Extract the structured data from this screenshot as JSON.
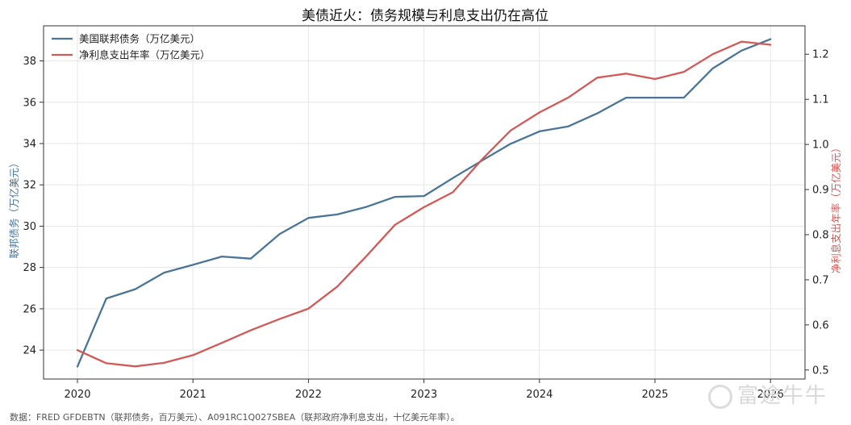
{
  "chart_data": {
    "type": "line",
    "title": "美债近火：债务规模与利息支出仍在高位",
    "x_ticks": [
      "2020",
      "2021",
      "2022",
      "2023",
      "2024",
      "2025",
      "2026"
    ],
    "y_left": {
      "label": "联邦债务（万亿美元）",
      "lim": [
        22.6,
        39.7
      ],
      "ticks": [
        24,
        26,
        28,
        30,
        32,
        34,
        36,
        38
      ]
    },
    "y_right": {
      "label": "净利息支出年率（万亿美元）",
      "lim": [
        0.48,
        1.263
      ],
      "ticks": [
        "0.5",
        "0.6",
        "0.7",
        "0.8",
        "0.9",
        "1.0",
        "1.1",
        "1.2"
      ]
    },
    "grid": true,
    "legend_position": "top-left",
    "series": [
      {
        "name": "美国联邦债务（万亿美元）",
        "axis": "left",
        "color": "#4a7596",
        "x": [
          "2020-01-01",
          "2020-04-01",
          "2020-07-01",
          "2020-10-01",
          "2021-01-01",
          "2021-04-01",
          "2021-07-01",
          "2021-10-01",
          "2022-01-01",
          "2022-04-01",
          "2022-07-01",
          "2022-10-01",
          "2023-01-01",
          "2023-04-01",
          "2023-07-01",
          "2023-10-01",
          "2024-01-01",
          "2024-04-01",
          "2024-07-01",
          "2024-10-01",
          "2025-01-01",
          "2025-04-01",
          "2025-07-01",
          "2025-10-01",
          "2026-01-01"
        ],
        "y": [
          23.2,
          26.5,
          26.95,
          27.75,
          28.13,
          28.53,
          28.43,
          29.62,
          30.4,
          30.57,
          30.93,
          31.42,
          31.46,
          32.33,
          33.17,
          33.99,
          34.59,
          34.83,
          35.46,
          36.22,
          36.22,
          36.22,
          37.64,
          38.5,
          39.05
        ]
      },
      {
        "name": "净利息支出年率（万亿美元）",
        "axis": "right",
        "color": "#d15a58",
        "x": [
          "2020-01-01",
          "2020-04-01",
          "2020-07-01",
          "2020-10-01",
          "2021-01-01",
          "2021-04-01",
          "2021-07-01",
          "2021-10-01",
          "2022-01-01",
          "2022-04-01",
          "2022-07-01",
          "2022-10-01",
          "2023-01-01",
          "2023-04-01",
          "2023-07-01",
          "2023-10-01",
          "2024-01-01",
          "2024-04-01",
          "2024-07-01",
          "2024-10-01",
          "2025-01-01",
          "2025-04-01",
          "2025-07-01",
          "2025-10-01",
          "2026-01-01"
        ],
        "y": [
          0.544,
          0.515,
          0.508,
          0.516,
          0.533,
          0.56,
          0.588,
          0.613,
          0.636,
          0.685,
          0.752,
          0.822,
          0.861,
          0.894,
          0.966,
          1.031,
          1.071,
          1.104,
          1.148,
          1.157,
          1.145,
          1.161,
          1.2,
          1.228,
          1.221
        ]
      }
    ]
  },
  "footnote": "数据：FRED GFDEBTN（联邦债务，百万美元）、A091RC1Q027SBEA（联邦政府净利息支出，十亿美元年率）。",
  "watermark": "富途牛牛"
}
